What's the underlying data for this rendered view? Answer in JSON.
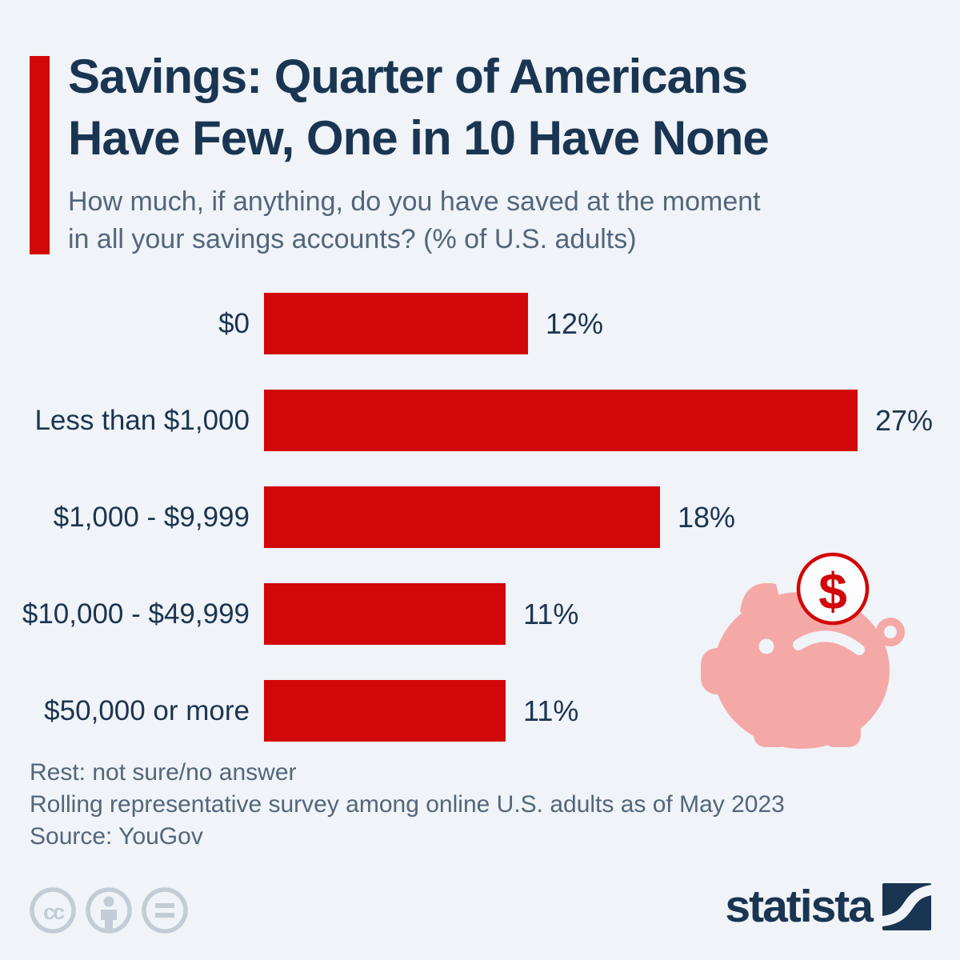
{
  "colors": {
    "background": "#f0f3f7",
    "bar_red": "#d20709",
    "navy": "#1a3552",
    "slate_text": "#52667c",
    "pig_pink": "#f4a9a7",
    "license_icon_gray": "#c3ccd6"
  },
  "header": {
    "title_lines": [
      "Savings: Quarter of Americans",
      "Have Few, One in 10 Have None"
    ],
    "subtitle_lines": [
      "How much, if anything, do you have saved at the moment",
      "in all your savings accounts? (% of U.S. adults)"
    ]
  },
  "chart_data": {
    "type": "bar",
    "orientation": "horizontal",
    "title": "Savings: Quarter of Americans Have Few, One in 10 Have None",
    "subtitle": "How much, if anything, do you have saved at the moment in all your savings accounts? (% of U.S. adults)",
    "categories": [
      "$0",
      "Less than $1,000",
      "$1,000 - $9,999",
      "$10,000 - $49,999",
      "$50,000 or more"
    ],
    "values": [
      12,
      27,
      18,
      11,
      11
    ],
    "value_suffix": "%",
    "value_labels": [
      "12%",
      "27%",
      "18%",
      "11%",
      "11%"
    ],
    "xlim": [
      0,
      27
    ],
    "axis_visible": false,
    "grid": false,
    "legend": false,
    "bar_color": "#d20709",
    "label_color": "#1a3552"
  },
  "illustration": {
    "type": "piggy-bank-with-coin",
    "coin_symbol": "$"
  },
  "footnotes": {
    "lines": [
      "Rest: not sure/no answer",
      "Rolling representative survey among online U.S. adults as of May 2023",
      "Source: YouGov"
    ]
  },
  "branding": {
    "logo_text": "statista",
    "license_icons": [
      "cc",
      "by",
      "nd"
    ]
  }
}
